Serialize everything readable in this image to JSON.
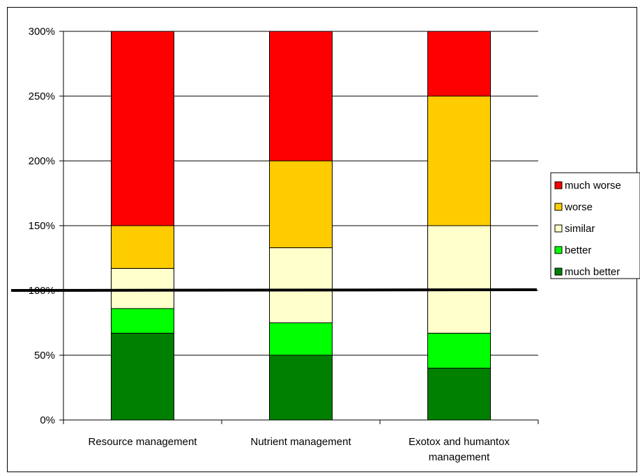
{
  "chart_data": {
    "type": "bar",
    "stacked": true,
    "categories": [
      [
        "Resource management"
      ],
      [
        "Nutrient management"
      ],
      [
        "Exotox and humantox",
        "management"
      ]
    ],
    "series": [
      {
        "name": "much better",
        "color": "#008000",
        "values": [
          0.67,
          0.5,
          0.4
        ]
      },
      {
        "name": "better",
        "color": "#00ff00",
        "values": [
          0.19,
          0.25,
          0.27
        ]
      },
      {
        "name": "similar",
        "color": "#ffffcc",
        "values": [
          0.31,
          0.58,
          0.83
        ]
      },
      {
        "name": "worse",
        "color": "#ffcc00",
        "values": [
          0.33,
          0.67,
          1.0
        ]
      },
      {
        "name": "much worse",
        "color": "#ff0000",
        "values": [
          1.5,
          1.0,
          0.5
        ]
      }
    ],
    "y_ticks": [
      "0%",
      "50%",
      "100%",
      "150%",
      "200%",
      "250%",
      "300%"
    ],
    "ylim": [
      0,
      3
    ],
    "reference_line": {
      "value": 1.0,
      "color": "#000000"
    },
    "legend_order": [
      "much worse",
      "worse",
      "similar",
      "better",
      "much better"
    ],
    "legend_position": "right",
    "grid": true
  }
}
